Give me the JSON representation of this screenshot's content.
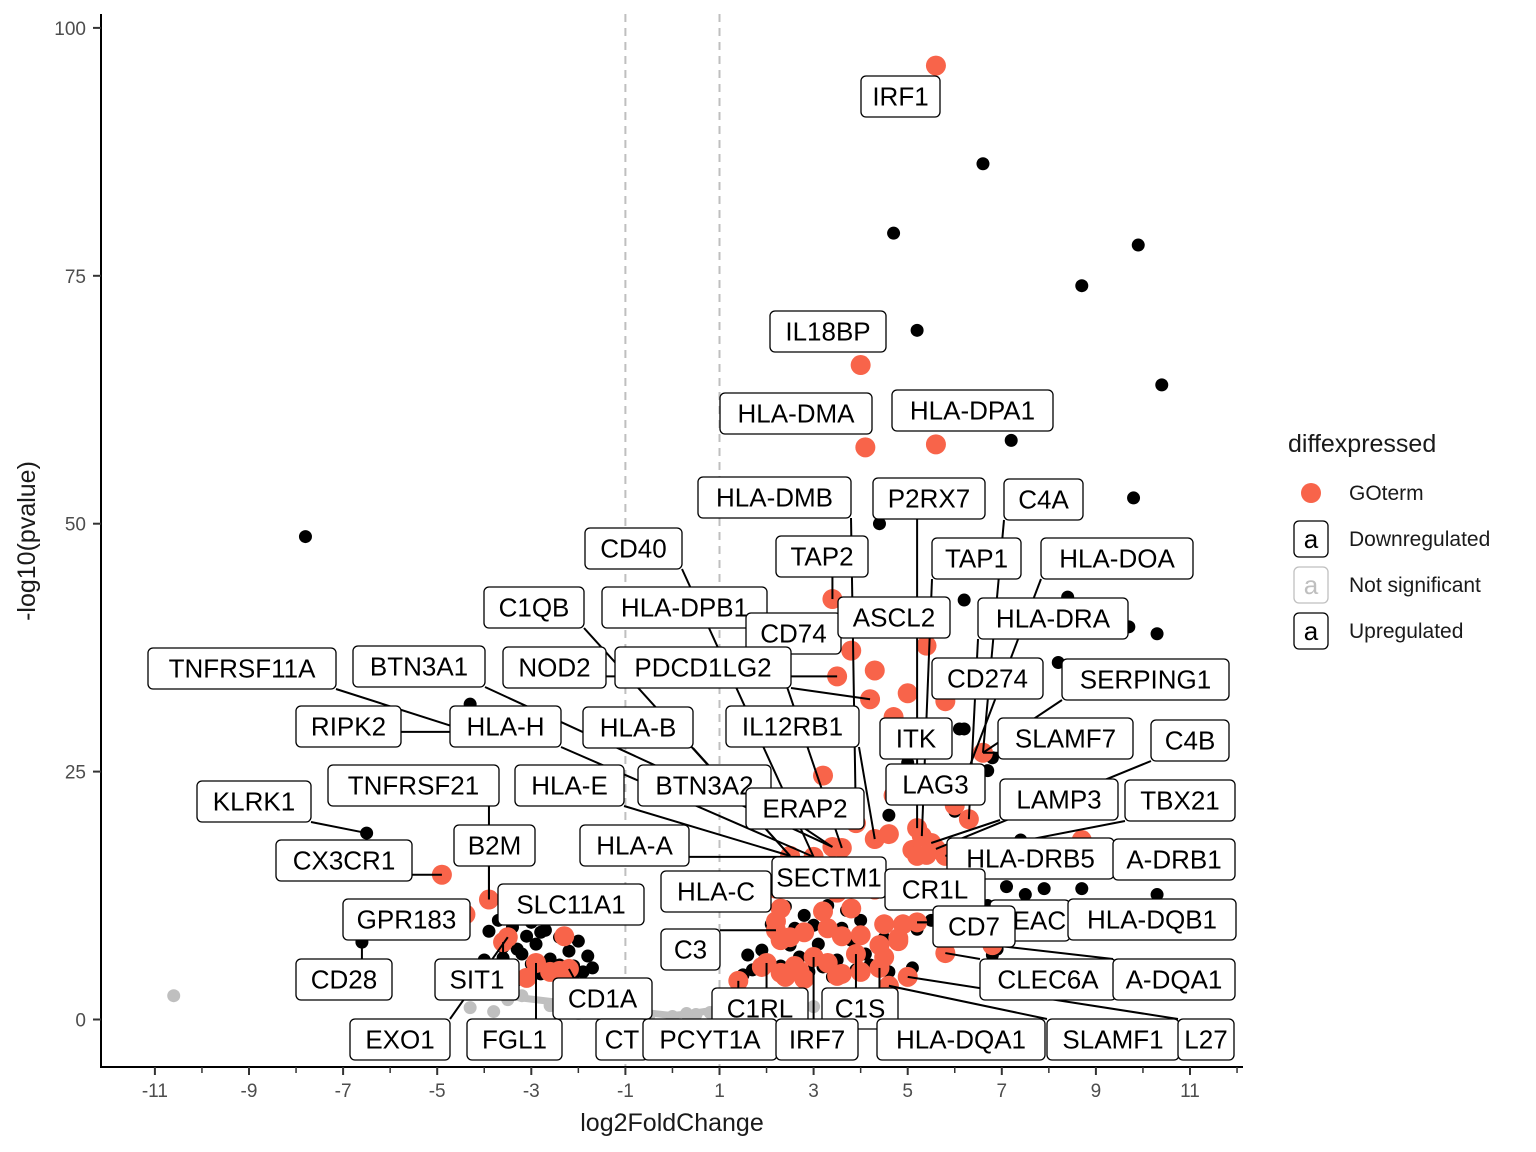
{
  "chart_data": {
    "type": "scatter",
    "xlabel": "log2FoldChange",
    "ylabel": "-log10(pvalue)",
    "xlim": [
      -11.5,
      12.3
    ],
    "ylim": [
      -5,
      101
    ],
    "x_ticks": [
      -11,
      -9,
      -7,
      -5,
      -3,
      -1,
      1,
      3,
      5,
      7,
      9,
      11
    ],
    "y_ticks": [
      0,
      25,
      50,
      75,
      100
    ],
    "threshold_lines_x": [
      -1,
      1
    ],
    "grid": false,
    "legend": {
      "title": "diffexpressed",
      "placement": "right",
      "entries": [
        {
          "name": "GOterm",
          "color": "#f8644a",
          "kind": "point"
        },
        {
          "name": "Downregulated",
          "color": "#000000",
          "kind": "label"
        },
        {
          "name": "Not significant",
          "color": "#bfbfbf",
          "kind": "label"
        },
        {
          "name": "Upregulated",
          "color": "#000000",
          "kind": "label"
        }
      ]
    },
    "colors": {
      "GOterm": "#f8644a",
      "Downregulated": "#000000",
      "Upregulated": "#000000",
      "Not significant": "#bfbfbf",
      "threshold": "#bfbfbf"
    },
    "series": [
      {
        "name": "Not significant",
        "points": [
          [
            -10.6,
            2.4
          ],
          [
            -4.3,
            1.2
          ],
          [
            -3.8,
            0.8
          ],
          [
            -3.5,
            2.0
          ],
          [
            -2.6,
            1.4
          ],
          [
            -2.0,
            0.6
          ],
          [
            -1.5,
            0.9
          ],
          [
            -1.0,
            0.5
          ],
          [
            -0.5,
            0.4
          ],
          [
            0.0,
            0.3
          ],
          [
            0.5,
            0.5
          ],
          [
            0.8,
            0.7
          ],
          [
            1.2,
            1.2
          ],
          [
            1.5,
            1.5
          ],
          [
            2.4,
            1.8
          ],
          [
            3.0,
            1.3
          ],
          [
            4.2,
            1.5
          ],
          [
            -3.2,
            2.4
          ],
          [
            -2.2,
            1.6
          ],
          [
            -0.8,
            0.8
          ],
          [
            0.3,
            0.6
          ],
          [
            1.9,
            2.0
          ]
        ]
      },
      {
        "name": "Downregulated",
        "points": [
          [
            -7.8,
            48.7
          ],
          [
            -4.3,
            31.8
          ],
          [
            -4.3,
            29.0
          ],
          [
            -6.5,
            18.8
          ],
          [
            -6.6,
            7.8
          ],
          [
            -4.6,
            9.9
          ],
          [
            -4.7,
            4.6
          ],
          [
            -4.0,
            6.0
          ],
          [
            -3.9,
            8.9
          ],
          [
            -3.7,
            10.0
          ],
          [
            -3.6,
            7.3
          ],
          [
            -3.5,
            5.1
          ],
          [
            -3.4,
            9.3
          ],
          [
            -3.3,
            4.0
          ],
          [
            -3.2,
            6.6
          ],
          [
            -3.1,
            8.4
          ],
          [
            -3.0,
            5.6
          ],
          [
            -2.9,
            7.6
          ],
          [
            -2.8,
            4.6
          ],
          [
            -2.7,
            9.0
          ],
          [
            -2.6,
            6.1
          ],
          [
            -2.5,
            5.1
          ],
          [
            -2.4,
            8.3
          ],
          [
            -2.3,
            4.3
          ],
          [
            -2.2,
            6.9
          ],
          [
            -2.1,
            5.4
          ],
          [
            -2.0,
            7.9
          ],
          [
            -1.9,
            4.8
          ],
          [
            -1.8,
            6.4
          ],
          [
            -1.7,
            5.2
          ],
          [
            -3.3,
            7.1
          ],
          [
            -2.8,
            8.8
          ],
          [
            -3.6,
            6.2
          ],
          [
            -2.4,
            5.5
          ],
          [
            -3.0,
            9.8
          ],
          [
            -2.1,
            4.6
          ]
        ]
      },
      {
        "name": "Upregulated",
        "points": [
          [
            6.6,
            86.3
          ],
          [
            4.7,
            79.3
          ],
          [
            9.9,
            78.1
          ],
          [
            8.7,
            74.0
          ],
          [
            5.2,
            69.5
          ],
          [
            10.4,
            64.0
          ],
          [
            7.2,
            58.4
          ],
          [
            9.8,
            52.6
          ],
          [
            4.4,
            50.0
          ],
          [
            10.3,
            38.9
          ],
          [
            8.4,
            42.6
          ],
          [
            6.2,
            42.3
          ],
          [
            9.7,
            39.6
          ],
          [
            8.2,
            36.0
          ],
          [
            6.1,
            29.3
          ],
          [
            6.2,
            29.3
          ],
          [
            6.8,
            26.4
          ],
          [
            6.7,
            25.1
          ],
          [
            7.4,
            18.1
          ],
          [
            7.5,
            12.6
          ],
          [
            7.9,
            13.2
          ],
          [
            8.7,
            13.2
          ],
          [
            10.3,
            12.6
          ],
          [
            7.1,
            13.4
          ],
          [
            5.0,
            25.9
          ],
          [
            4.6,
            20.6
          ],
          [
            6.0,
            21.0
          ],
          [
            6.3,
            12.0
          ],
          [
            5.3,
            13.7
          ],
          [
            6.7,
            11.5
          ],
          [
            7.8,
            10.0
          ],
          [
            6.5,
            9.0
          ],
          [
            5.8,
            7.4
          ],
          [
            6.8,
            6.5
          ],
          [
            5.1,
            5.2
          ],
          [
            4.5,
            8.2
          ],
          [
            4.8,
            11.9
          ],
          [
            5.5,
            10.0
          ],
          [
            6.1,
            8.6
          ],
          [
            6.9,
            7.1
          ],
          [
            5.2,
            9.1
          ],
          [
            4.1,
            6.6
          ],
          [
            3.0,
            9.5
          ],
          [
            2.5,
            7.5
          ],
          [
            2.0,
            6.0
          ],
          [
            1.7,
            5.0
          ],
          [
            1.5,
            4.5
          ],
          [
            2.2,
            8.5
          ],
          [
            2.8,
            10.5
          ],
          [
            3.3,
            11.5
          ],
          [
            3.8,
            8.0
          ],
          [
            4.2,
            5.5
          ],
          [
            3.5,
            6.0
          ],
          [
            2.9,
            4.8
          ],
          [
            2.3,
            5.4
          ],
          [
            3.6,
            9.2
          ],
          [
            1.9,
            7.0
          ],
          [
            3.1,
            7.6
          ],
          [
            4.0,
            10.0
          ],
          [
            2.6,
            9.2
          ],
          [
            4.4,
            7.2
          ],
          [
            3.9,
            5.0
          ],
          [
            2.1,
            9.6
          ],
          [
            3.4,
            4.3
          ],
          [
            2.7,
            6.3
          ],
          [
            1.6,
            6.5
          ],
          [
            3.7,
            11.0
          ],
          [
            4.6,
            4.8
          ],
          [
            2.4,
            11.4
          ],
          [
            3.2,
            5.3
          ]
        ]
      },
      {
        "name": "GOterm",
        "points": [
          [
            5.6,
            96.2
          ],
          [
            4.0,
            66.0
          ],
          [
            4.1,
            57.7
          ],
          [
            5.6,
            58.0
          ],
          [
            3.4,
            42.4
          ],
          [
            3.8,
            37.2
          ],
          [
            5.4,
            37.7
          ],
          [
            4.3,
            35.2
          ],
          [
            3.5,
            34.6
          ],
          [
            4.2,
            32.3
          ],
          [
            5.0,
            32.9
          ],
          [
            5.8,
            32.1
          ],
          [
            4.7,
            30.5
          ],
          [
            6.6,
            26.9
          ],
          [
            3.2,
            24.6
          ],
          [
            4.7,
            22.6
          ],
          [
            6.0,
            21.6
          ],
          [
            6.3,
            20.2
          ],
          [
            3.9,
            19.8
          ],
          [
            5.2,
            19.3
          ],
          [
            5.3,
            18.5
          ],
          [
            4.6,
            18.7
          ],
          [
            4.3,
            18.2
          ],
          [
            3.6,
            17.3
          ],
          [
            3.4,
            17.4
          ],
          [
            5.5,
            17.8
          ],
          [
            5.6,
            17.2
          ],
          [
            5.1,
            17.1
          ],
          [
            5.2,
            16.5
          ],
          [
            5.4,
            16.6
          ],
          [
            5.8,
            16.5
          ],
          [
            3.0,
            16.4
          ],
          [
            2.5,
            16.5
          ],
          [
            8.7,
            18.1
          ],
          [
            -4.9,
            14.6
          ],
          [
            -4.4,
            10.6
          ],
          [
            -3.9,
            12.1
          ],
          [
            -3.5,
            8.3
          ],
          [
            -3.6,
            7.8
          ],
          [
            -2.3,
            8.4
          ],
          [
            -2.9,
            5.7
          ],
          [
            -2.6,
            4.8
          ],
          [
            -2.4,
            4.9
          ],
          [
            -2.2,
            5.1
          ],
          [
            -3.1,
            4.2
          ],
          [
            2.2,
            13.2
          ],
          [
            2.3,
            11.2
          ],
          [
            2.2,
            9.9
          ],
          [
            2.2,
            9.0
          ],
          [
            2.3,
            8.0
          ],
          [
            4.3,
            13.1
          ],
          [
            4.5,
            9.6
          ],
          [
            4.9,
            9.6
          ],
          [
            5.2,
            9.8
          ],
          [
            3.0,
            13.5
          ],
          [
            3.5,
            12.8
          ],
          [
            3.8,
            11.2
          ],
          [
            4.0,
            8.5
          ],
          [
            4.8,
            8.2
          ],
          [
            3.2,
            10.9
          ],
          [
            2.8,
            8.8
          ],
          [
            2.5,
            8.3
          ],
          [
            3.3,
            9.2
          ],
          [
            3.6,
            8.4
          ],
          [
            4.4,
            7.5
          ],
          [
            4.8,
            7.9
          ],
          [
            5.8,
            6.7
          ],
          [
            6.8,
            7.5
          ],
          [
            3.9,
            6.6
          ],
          [
            4.5,
            6.3
          ],
          [
            3.3,
            5.7
          ],
          [
            3.0,
            6.3
          ],
          [
            2.7,
            4.9
          ],
          [
            2.3,
            4.7
          ],
          [
            1.9,
            5.3
          ],
          [
            2.0,
            5.7
          ],
          [
            2.6,
            5.4
          ],
          [
            3.5,
            4.4
          ],
          [
            4.0,
            4.8
          ],
          [
            4.4,
            5.2
          ],
          [
            5.0,
            4.3
          ],
          [
            4.6,
            3.4
          ],
          [
            1.4,
            3.9
          ],
          [
            2.4,
            4.3
          ],
          [
            2.8,
            4.1
          ],
          [
            3.6,
            4.6
          ]
        ]
      }
    ],
    "annotations": [
      {
        "text": "IRF1",
        "x": 5.6,
        "y": 96.2
      },
      {
        "text": "IL18BP",
        "x": 4.0,
        "y": 66.0
      },
      {
        "text": "HLA-DMA",
        "x": 4.1,
        "y": 57.7
      },
      {
        "text": "HLA-DPA1",
        "x": 5.6,
        "y": 58.0
      },
      {
        "text": "HLA-DMB",
        "x": 3.9,
        "y": 19.8
      },
      {
        "text": "P2RX7",
        "x": 5.2,
        "y": 19.3
      },
      {
        "text": "C4A",
        "x": 6.6,
        "y": 26.9
      },
      {
        "text": "CD40",
        "x": 3.0,
        "y": 16.4
      },
      {
        "text": "TAP2",
        "x": 3.4,
        "y": 42.4
      },
      {
        "text": "TAP1",
        "x": 5.3,
        "y": 18.5
      },
      {
        "text": "HLA-DOA",
        "x": 6.0,
        "y": 21.6
      },
      {
        "text": "C1QB",
        "x": 2.5,
        "y": 16.5
      },
      {
        "text": "HLA-DPB1",
        "x": 3.6,
        "y": 17.3
      },
      {
        "text": "CD74",
        "x": 3.8,
        "y": 37.2
      },
      {
        "text": "ASCL2",
        "x": 5.4,
        "y": 37.7
      },
      {
        "text": "HLA-DRA",
        "x": 6.3,
        "y": 20.2
      },
      {
        "text": "TNFRSF11A",
        "x": -4.3,
        "y": 29.0
      },
      {
        "text": "BTN3A1",
        "x": 3.4,
        "y": 17.4
      },
      {
        "text": "NOD2",
        "x": 3.5,
        "y": 34.6
      },
      {
        "text": "PDCD1LG2",
        "x": 4.2,
        "y": 32.3
      },
      {
        "text": "CD274",
        "x": 5.8,
        "y": 32.1
      },
      {
        "text": "SERPING1",
        "x": 6.6,
        "y": 26.9
      },
      {
        "text": "RIPK2",
        "x": -4.3,
        "y": 29.0
      },
      {
        "text": "HLA-H",
        "x": 3.0,
        "y": 16.4
      },
      {
        "text": "HLA-B",
        "x": 2.5,
        "y": 16.5
      },
      {
        "text": "IL12RB1",
        "x": 4.3,
        "y": 18.2
      },
      {
        "text": "ITK",
        "x": 4.7,
        "y": 30.5
      },
      {
        "text": "SLAMF7",
        "x": 6.6,
        "y": 26.9
      },
      {
        "text": "C4B",
        "x": 5.6,
        "y": 17.2
      },
      {
        "text": "KLRK1",
        "x": -6.5,
        "y": 18.8
      },
      {
        "text": "TNFRSF21",
        "x": -3.9,
        "y": 12.1
      },
      {
        "text": "HLA-E",
        "x": 2.5,
        "y": 16.5
      },
      {
        "text": "BTN3A2",
        "x": 3.4,
        "y": 17.4
      },
      {
        "text": "LAG3",
        "x": 4.7,
        "y": 22.6
      },
      {
        "text": "ERAP2",
        "x": 3.9,
        "y": 19.8
      },
      {
        "text": "LAMP3",
        "x": 5.5,
        "y": 17.8
      },
      {
        "text": "TBX21",
        "x": 5.8,
        "y": 16.5
      },
      {
        "text": "CX3CR1",
        "x": -4.9,
        "y": 14.6
      },
      {
        "text": "B2M",
        "x": -3.9,
        "y": 12.1
      },
      {
        "text": "HLA-A",
        "x": 3.0,
        "y": 16.4
      },
      {
        "text": "HLA-DRB5",
        "x": 5.8,
        "y": 16.5
      },
      {
        "text": "A-DRB1",
        "x": 8.7,
        "y": 18.1
      },
      {
        "text": "SECTM1",
        "x": 3.5,
        "y": 12.8
      },
      {
        "text": "GPR183",
        "x": -4.4,
        "y": 10.6
      },
      {
        "text": "SLC11A1",
        "x": -3.5,
        "y": 8.3
      },
      {
        "text": "HLA-C",
        "x": 2.2,
        "y": 13.2
      },
      {
        "text": "CR1L",
        "x": 4.3,
        "y": 13.1
      },
      {
        "text": "CEAC",
        "x": 6.3,
        "y": 12.0
      },
      {
        "text": "HLA-DQB1",
        "x": 5.2,
        "y": 9.8
      },
      {
        "text": "CD7",
        "x": 5.2,
        "y": 9.8
      },
      {
        "text": "C3",
        "x": 2.2,
        "y": 9.0
      },
      {
        "text": "CD28",
        "x": -6.6,
        "y": 7.8
      },
      {
        "text": "SIT1",
        "x": -3.6,
        "y": 7.8
      },
      {
        "text": "CD1A",
        "x": -2.4,
        "y": 4.9
      },
      {
        "text": "CLEC6A",
        "x": 5.8,
        "y": 6.7
      },
      {
        "text": "A-DQA1",
        "x": 6.8,
        "y": 7.5
      },
      {
        "text": "C1RL",
        "x": 2.0,
        "y": 5.7
      },
      {
        "text": "C1S",
        "x": 3.9,
        "y": 6.6
      },
      {
        "text": "EXO1",
        "x": -3.5,
        "y": 8.3
      },
      {
        "text": "FGL1",
        "x": -2.9,
        "y": 5.7
      },
      {
        "text": "CT",
        "x": -2.2,
        "y": 5.1
      },
      {
        "text": "PCYT1A",
        "x": 1.4,
        "y": 3.9
      },
      {
        "text": "IRF7",
        "x": 3.0,
        "y": 6.3
      },
      {
        "text": "HLA-DQA1",
        "x": 4.4,
        "y": 5.2
      },
      {
        "text": "SLAMF1",
        "x": 4.6,
        "y": 3.4
      },
      {
        "text": "L27",
        "x": 5.0,
        "y": 4.3
      }
    ]
  }
}
